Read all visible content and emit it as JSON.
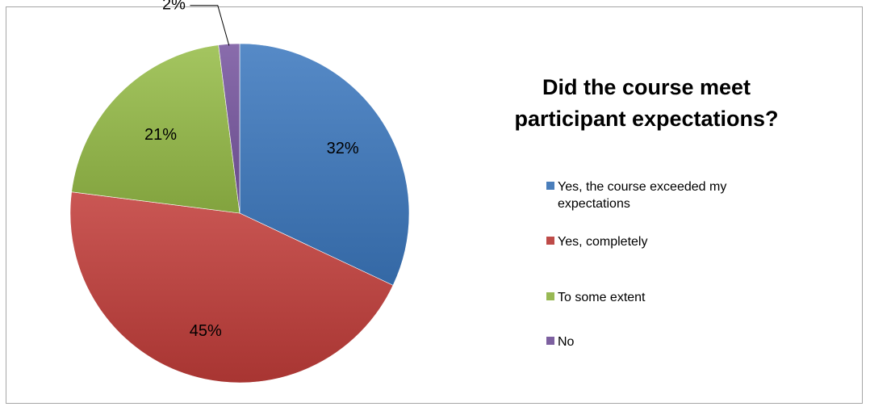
{
  "chart_data": {
    "type": "pie",
    "title": "Did the course meet participant expectations?",
    "categories": [
      "Yes, the course exceeded my expectations",
      "Yes, completely",
      "To some extent",
      "No"
    ],
    "values": [
      32,
      45,
      21,
      2
    ],
    "value_labels": [
      "32%",
      "45%",
      "21%",
      "2%"
    ],
    "colors": [
      "#4a7ebb",
      "#be4b48",
      "#98b954",
      "#7d60a0"
    ],
    "start_angle_deg": 0,
    "direction": "clockwise",
    "legend_position": "right"
  }
}
